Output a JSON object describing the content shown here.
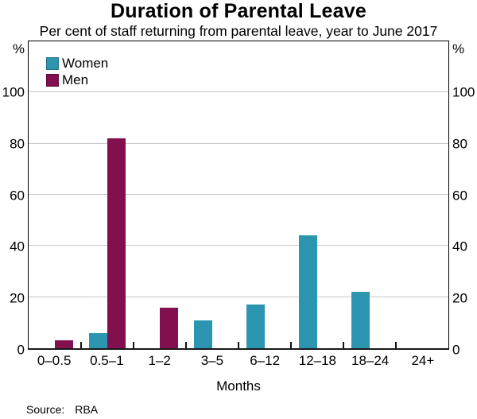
{
  "figure": {
    "title": "Duration of Parental Leave",
    "subtitle": "Per cent of staff returning from parental leave, year to June 2017",
    "source_label": "Source:",
    "source_value": "RBA"
  },
  "chart_data": {
    "type": "bar",
    "title": "Duration of Parental Leave",
    "subtitle": "Per cent of staff returning from parental leave, year to June 2017",
    "categories": [
      "0–0.5",
      "0.5–1",
      "1–2",
      "3–5",
      "6–12",
      "12–18",
      "18–24",
      "24+"
    ],
    "series": [
      {
        "name": "Women",
        "color": "#2C96B0",
        "values": [
          0,
          6,
          0,
          11,
          17,
          44,
          22,
          0
        ]
      },
      {
        "name": "Men",
        "color": "#83104E",
        "values": [
          3,
          82,
          16,
          0,
          0,
          0,
          0,
          0
        ]
      }
    ],
    "xlabel": "Months",
    "unit_label": "%",
    "yticks": [
      0,
      20,
      40,
      60,
      80,
      100
    ],
    "ylim": [
      0,
      120
    ],
    "grid": true,
    "gridline_color": "#c9c9c9",
    "legend_position": "top-left",
    "legend": [
      "Women",
      "Men"
    ],
    "source": "RBA"
  }
}
